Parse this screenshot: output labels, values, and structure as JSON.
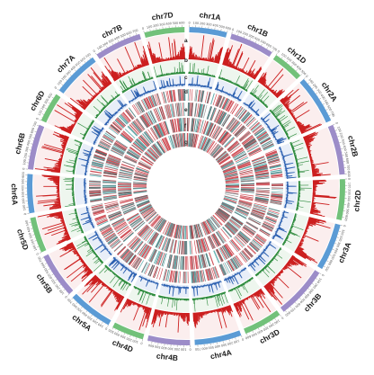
{
  "figure": {
    "track_letters": [
      "a",
      "b",
      "c",
      "d",
      "e",
      "f",
      "g"
    ]
  },
  "colors": {
    "subgenome_A": "#5b9bd5",
    "subgenome_B": "#9c8cc8",
    "subgenome_D": "#72c17a",
    "track_a_bars": "#cc1f1f",
    "track_a_bg": "#fbeeee",
    "track_b_bars": "#2e8b3e",
    "track_b_bg": "#eef6ee",
    "track_c_line": "#2a5fb0",
    "track_c_bg": "#e8eef8",
    "heat_red": "#c8323c",
    "heat_teal": "#3a9a9a",
    "heat_dark": "#444444"
  },
  "chromosomes": [
    {
      "name": "chr1A",
      "group": "A",
      "length": 600
    },
    {
      "name": "chr1B",
      "group": "B",
      "length": 700
    },
    {
      "name": "chr1D",
      "group": "D",
      "length": 500
    },
    {
      "name": "chr2A",
      "group": "A",
      "length": 780
    },
    {
      "name": "chr2B",
      "group": "B",
      "length": 800
    },
    {
      "name": "chr2D",
      "group": "D",
      "length": 650
    },
    {
      "name": "chr3A",
      "group": "A",
      "length": 750
    },
    {
      "name": "chr3B",
      "group": "B",
      "length": 830
    },
    {
      "name": "chr3D",
      "group": "D",
      "length": 615
    },
    {
      "name": "chr4A",
      "group": "A",
      "length": 745
    },
    {
      "name": "chr4B",
      "group": "B",
      "length": 675
    },
    {
      "name": "chr4D",
      "group": "D",
      "length": 510
    },
    {
      "name": "chr5A",
      "group": "A",
      "length": 710
    },
    {
      "name": "chr5B",
      "group": "B",
      "length": 715
    },
    {
      "name": "chr5D",
      "group": "D",
      "length": 565
    },
    {
      "name": "chr6A",
      "group": "A",
      "length": 620
    },
    {
      "name": "chr6B",
      "group": "B",
      "length": 720
    },
    {
      "name": "chr6D",
      "group": "D",
      "length": 475
    },
    {
      "name": "chr7A",
      "group": "A",
      "length": 740
    },
    {
      "name": "chr7B",
      "group": "B",
      "length": 750
    },
    {
      "name": "chr7D",
      "group": "D",
      "length": 640
    }
  ],
  "tick_step": 100
}
